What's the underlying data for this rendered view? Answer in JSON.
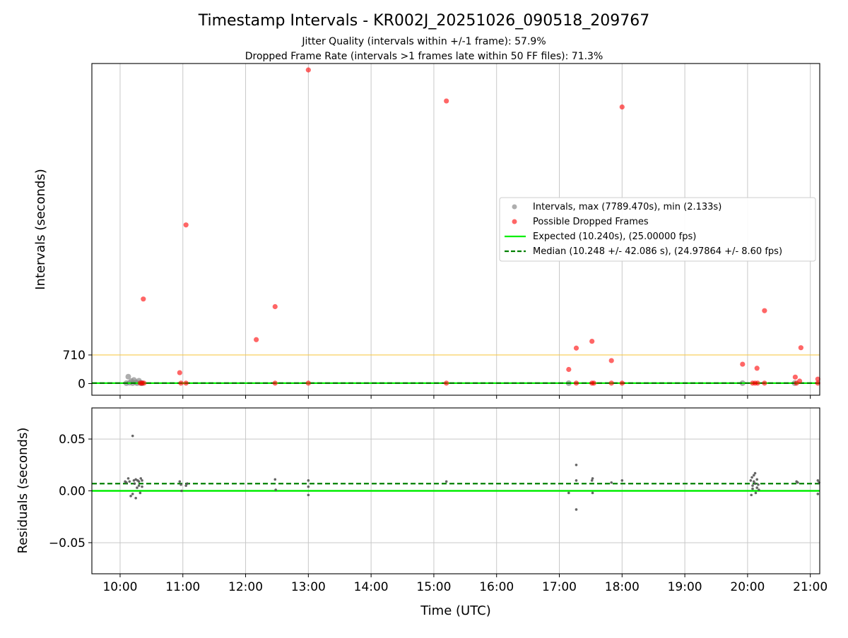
{
  "figure": {
    "title": "Timestamp Intervals - KR002J_20251026_090518_209767",
    "subtitle_line1": "Jitter Quality (intervals within +/-1 frame): 57.9%",
    "subtitle_line2": "Dropped Frame Rate (intervals >1 frames late within 50 FF files): 71.3%",
    "xlabel": "Time (UTC)"
  },
  "colors": {
    "intervals": "#8c8c8c",
    "dropped": "#ff0000",
    "expected": "#00ee00",
    "median": "#008000",
    "threshold": "#f7c948",
    "grid": "#c8c8c8",
    "residuals": "#555555"
  },
  "chart_data": [
    {
      "type": "scatter",
      "panel": "top",
      "title": "",
      "ylabel": "Intervals (seconds)",
      "xlabel": "",
      "x_range_hours": [
        9.55,
        21.15
      ],
      "ylim": [
        -290,
        7950
      ],
      "yticks": [
        {
          "value": 0,
          "label": "0"
        },
        {
          "value": 710,
          "label": "710"
        }
      ],
      "threshold_line": 710,
      "expected_value": 10.24,
      "median_value": 10.248,
      "grid": "vertical",
      "legend_position": "center-right",
      "legend": {
        "intervals": "Intervals, max (7789.470s), min (2.133s)",
        "dropped": "Possible Dropped Frames",
        "expected": "Expected (10.240s), (25.00000 fps)",
        "median": "Median (10.248 +/- 42.086 s), (24.97864 +/- 8.60 fps)"
      },
      "series": [
        {
          "name": "Intervals, max (7789.470s), min (2.133s)",
          "points": [
            [
              10.1,
              10
            ],
            [
              10.13,
              170
            ],
            [
              10.15,
              20
            ],
            [
              10.18,
              60
            ],
            [
              10.2,
              10
            ],
            [
              10.22,
              90
            ],
            [
              10.25,
              30
            ],
            [
              10.27,
              10
            ],
            [
              10.3,
              70
            ],
            [
              10.33,
              15
            ],
            [
              10.34,
              10
            ],
            [
              10.35,
              10
            ],
            [
              17.15,
              10
            ],
            [
              19.92,
              10
            ],
            [
              20.75,
              10
            ]
          ]
        },
        {
          "name": "Possible Dropped Frames",
          "points": [
            [
              10.37,
              2100
            ],
            [
              10.32,
              10
            ],
            [
              10.35,
              10
            ],
            [
              10.38,
              10
            ],
            [
              10.95,
              270
            ],
            [
              10.97,
              10
            ],
            [
              11.05,
              10
            ],
            [
              11.05,
              3940
            ],
            [
              12.17,
              1090
            ],
            [
              12.47,
              1910
            ],
            [
              12.47,
              10
            ],
            [
              13.0,
              7790
            ],
            [
              13.0,
              10
            ],
            [
              15.2,
              7020
            ],
            [
              15.2,
              10
            ],
            [
              17.15,
              350
            ],
            [
              17.27,
              880
            ],
            [
              17.27,
              10
            ],
            [
              17.52,
              1050
            ],
            [
              17.52,
              10
            ],
            [
              17.55,
              10
            ],
            [
              17.83,
              570
            ],
            [
              17.83,
              10
            ],
            [
              18.0,
              6870
            ],
            [
              18.0,
              10
            ],
            [
              19.92,
              480
            ],
            [
              20.08,
              10
            ],
            [
              20.12,
              10
            ],
            [
              20.16,
              10
            ],
            [
              20.15,
              380
            ],
            [
              20.27,
              1810
            ],
            [
              20.27,
              10
            ],
            [
              20.76,
              160
            ],
            [
              20.78,
              10
            ],
            [
              20.83,
              60
            ],
            [
              20.85,
              890
            ],
            [
              21.12,
              110
            ],
            [
              21.12,
              10
            ]
          ]
        }
      ]
    },
    {
      "type": "scatter",
      "panel": "bottom",
      "title": "",
      "ylabel": "Residuals (seconds)",
      "xlabel": "Time (UTC)",
      "x_range_hours": [
        9.55,
        21.15
      ],
      "ylim": [
        -0.08,
        0.08
      ],
      "yticks": [
        {
          "value": 0.05,
          "label": "0.05"
        },
        {
          "value": 0.0,
          "label": "0.00"
        },
        {
          "value": -0.05,
          "label": "−0.05"
        }
      ],
      "xticks": [
        {
          "value": 10,
          "label": "10:00"
        },
        {
          "value": 11,
          "label": "11:00"
        },
        {
          "value": 12,
          "label": "12:00"
        },
        {
          "value": 13,
          "label": "13:00"
        },
        {
          "value": 14,
          "label": "14:00"
        },
        {
          "value": 15,
          "label": "15:00"
        },
        {
          "value": 16,
          "label": "16:00"
        },
        {
          "value": 17,
          "label": "17:00"
        },
        {
          "value": 18,
          "label": "18:00"
        },
        {
          "value": 19,
          "label": "19:00"
        },
        {
          "value": 20,
          "label": "20:00"
        },
        {
          "value": 21,
          "label": "21:00"
        }
      ],
      "expected_residual": 0.0,
      "median_residual": 0.007,
      "grid": "both",
      "series": [
        {
          "name": "",
          "points": [
            [
              10.08,
              0.009
            ],
            [
              10.1,
              0.008
            ],
            [
              10.13,
              0.012
            ],
            [
              10.15,
              0.009
            ],
            [
              10.17,
              -0.005
            ],
            [
              10.2,
              0.053
            ],
            [
              10.2,
              -0.003
            ],
            [
              10.22,
              0.01
            ],
            [
              10.23,
              0.007
            ],
            [
              10.25,
              0.011
            ],
            [
              10.25,
              -0.007
            ],
            [
              10.27,
              0.003
            ],
            [
              10.28,
              0.01
            ],
            [
              10.3,
              0.009
            ],
            [
              10.3,
              0.005
            ],
            [
              10.32,
              -0.002
            ],
            [
              10.33,
              0.012
            ],
            [
              10.35,
              0.01
            ],
            [
              10.35,
              0.004
            ],
            [
              10.95,
              0.009
            ],
            [
              10.97,
              0.006
            ],
            [
              10.98,
              0.0
            ],
            [
              11.05,
              0.005
            ],
            [
              11.07,
              0.007
            ],
            [
              12.47,
              0.011
            ],
            [
              12.48,
              0.001
            ],
            [
              13.0,
              0.01
            ],
            [
              13.0,
              0.004
            ],
            [
              13.0,
              -0.004
            ],
            [
              15.2,
              0.009
            ],
            [
              17.15,
              -0.002
            ],
            [
              17.27,
              0.025
            ],
            [
              17.27,
              0.01
            ],
            [
              17.27,
              -0.018
            ],
            [
              17.52,
              0.01
            ],
            [
              17.53,
              0.012
            ],
            [
              17.53,
              -0.002
            ],
            [
              17.83,
              0.008
            ],
            [
              18.0,
              0.01
            ],
            [
              20.05,
              0.01
            ],
            [
              20.06,
              -0.004
            ],
            [
              20.07,
              0.013
            ],
            [
              20.08,
              0.005
            ],
            [
              20.08,
              0.002
            ],
            [
              20.1,
              0.015
            ],
            [
              20.1,
              0.009
            ],
            [
              20.12,
              0.017
            ],
            [
              20.12,
              0.007
            ],
            [
              20.13,
              -0.002
            ],
            [
              20.15,
              0.011
            ],
            [
              20.15,
              0.003
            ],
            [
              20.17,
              0.006
            ],
            [
              20.18,
              0.001
            ],
            [
              20.78,
              0.009
            ],
            [
              20.8,
              0.008
            ],
            [
              21.12,
              0.01
            ],
            [
              21.12,
              -0.003
            ],
            [
              21.14,
              0.008
            ]
          ]
        }
      ]
    }
  ]
}
